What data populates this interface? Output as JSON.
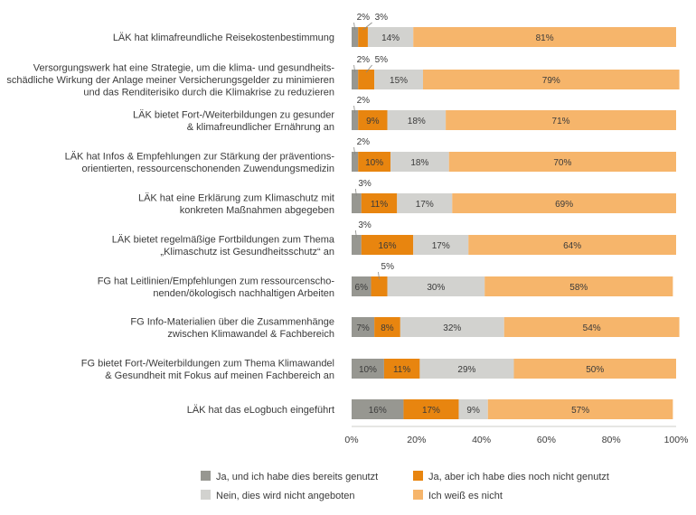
{
  "chart_data": {
    "type": "bar",
    "orientation": "horizontal",
    "stacked": true,
    "percent": true,
    "categories": [
      [
        "LÄK hat klimafreundliche Reisekostenbestimmung"
      ],
      [
        "Versorgungswerk hat eine Strategie, um die klima- und gesundheits-",
        "schädliche Wirkung der Anlage meiner Versicherungsgelder zu minimieren",
        "und das Renditerisiko durch die Klimakrise zu reduzieren"
      ],
      [
        "LÄK bietet Fort-/Weiterbildungen zu gesunder",
        "& klimafreundlicher Ernährung an"
      ],
      [
        "LÄK hat Infos & Empfehlungen zur Stärkung der präventions-",
        "orientierten, ressourcenschonenden Zuwendungsmedizin"
      ],
      [
        "LÄK hat eine Erklärung zum Klimaschutz mit",
        "konkreten Maßnahmen abgegeben"
      ],
      [
        "LÄK bietet regelmäßige Fortbildungen zum Thema",
        "„Klimaschutz ist Gesundheitsschutz“ an"
      ],
      [
        "FG hat Leitlinien/Empfehlungen zum ressourcenscho-",
        "nenden/ökologisch nachhaltigen Arbeiten"
      ],
      [
        "FG Info-Materialien über die Zusammenhänge",
        "zwischen Klimawandel &  Fachbereich"
      ],
      [
        "FG bietet Fort-/Weiterbildungen zum Thema Klimawandel",
        "& Gesundheit mit Fokus auf meinen Fachbereich an"
      ],
      [
        "LÄK hat das eLogbuch eingeführt"
      ]
    ],
    "series": [
      {
        "name": "Ja, und ich habe dies bereits genutzt",
        "color": "#979791",
        "values": [
          2,
          2,
          2,
          2,
          3,
          3,
          6,
          7,
          10,
          16
        ],
        "labels": [
          "2%",
          "2%",
          "2%",
          "2%",
          "3%",
          "3%",
          "6%",
          "7%",
          "10%",
          "16%"
        ]
      },
      {
        "name": "Ja, aber ich habe dies noch nicht genutzt",
        "color": "#e8850f",
        "values": [
          3,
          5,
          9,
          10,
          11,
          16,
          5,
          8,
          11,
          17
        ],
        "labels": [
          "3%",
          "5%",
          "9%",
          "10%",
          "11%",
          "16%",
          "5%",
          "8%",
          "11%",
          "17%"
        ]
      },
      {
        "name": "Nein, dies wird nicht angeboten",
        "color": "#d2d2cf",
        "values": [
          14,
          15,
          18,
          18,
          17,
          17,
          30,
          32,
          29,
          9
        ],
        "labels": [
          "14%",
          "15%",
          "18%",
          "18%",
          "17%",
          "17%",
          "30%",
          "32%",
          "29%",
          "9%"
        ]
      },
      {
        "name": "Ich weiß es nicht",
        "color": "#f6b56b",
        "values": [
          81,
          79,
          71,
          70,
          69,
          64,
          58,
          54,
          50,
          57
        ],
        "labels": [
          "81%",
          "79%",
          "71%",
          "70%",
          "69%",
          "64%",
          "58%",
          "54%",
          "50%",
          "57%"
        ]
      }
    ],
    "xlim": [
      0,
      100
    ],
    "xticks": [
      "0%",
      "20%",
      "40%",
      "60%",
      "80%",
      "100%"
    ],
    "grid": false,
    "legend_position": "bottom"
  }
}
